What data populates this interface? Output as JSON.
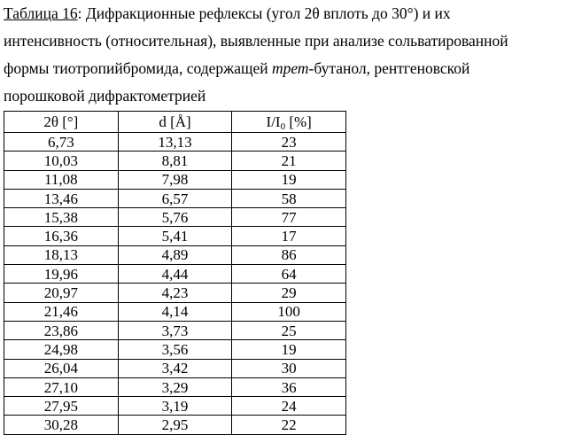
{
  "caption": {
    "label": "Таблица 16",
    "line1_rest": ": Дифракционные рефлексы (угол 2θ вплоть до 30°) и их",
    "line2": "интенсивность (относительная), выявленные при анализе сольватированной",
    "line3_before": "формы тиотропийбромида, содержащей ",
    "line3_italic": "трет",
    "line3_after": "-бутанол, рентгеновской",
    "line4": "порошковой дифрактометрией"
  },
  "table": {
    "headers": {
      "two_theta": "2θ [°]",
      "d": "d [Å]",
      "intensity_main": "I/I",
      "intensity_sub": "0",
      "intensity_unit": " [%]"
    },
    "rows": [
      {
        "two_theta": "6,73",
        "d": "13,13",
        "intensity": "23"
      },
      {
        "two_theta": "10,03",
        "d": "8,81",
        "intensity": "21"
      },
      {
        "two_theta": "11,08",
        "d": "7,98",
        "intensity": "19"
      },
      {
        "two_theta": "13,46",
        "d": "6,57",
        "intensity": "58"
      },
      {
        "two_theta": "15,38",
        "d": "5,76",
        "intensity": "77"
      },
      {
        "two_theta": "16,36",
        "d": "5,41",
        "intensity": "17"
      },
      {
        "two_theta": "18,13",
        "d": "4,89",
        "intensity": "86"
      },
      {
        "two_theta": "19,96",
        "d": "4,44",
        "intensity": "64"
      },
      {
        "two_theta": "20,97",
        "d": "4,23",
        "intensity": "29"
      },
      {
        "two_theta": "21,46",
        "d": "4,14",
        "intensity": "100"
      },
      {
        "two_theta": "23,86",
        "d": "3,73",
        "intensity": "25"
      },
      {
        "two_theta": "24,98",
        "d": "3,56",
        "intensity": "19"
      },
      {
        "two_theta": "26,04",
        "d": "3,42",
        "intensity": "30"
      },
      {
        "two_theta": "27,10",
        "d": "3,29",
        "intensity": "36"
      },
      {
        "two_theta": "27,95",
        "d": "3,19",
        "intensity": "24"
      },
      {
        "two_theta": "30,28",
        "d": "2,95",
        "intensity": "22"
      }
    ]
  }
}
